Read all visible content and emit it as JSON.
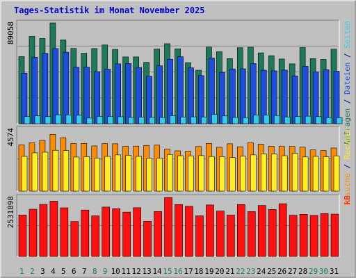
{
  "title": "Tages-Statistik im Monat November 2025",
  "colors": {
    "background": "#c0c0c0",
    "title": "#0000cc",
    "grid": "#888888",
    "hits": "#1c7a5a",
    "files": "#1c4fe0",
    "pages": "#33ccee",
    "visits": "#ff8c00",
    "sites": "#ffee22",
    "kbytes": "#ff1010",
    "weekday_label": "#000080",
    "weekend_label": "#1c7a5a"
  },
  "chart_data": {
    "type": "bar",
    "x": [
      1,
      2,
      3,
      4,
      5,
      6,
      7,
      8,
      9,
      10,
      11,
      12,
      13,
      14,
      15,
      16,
      17,
      18,
      19,
      20,
      21,
      22,
      23,
      24,
      25,
      26,
      27,
      28,
      29,
      30,
      31
    ],
    "weekend_days": [
      1,
      2,
      8,
      9,
      15,
      16,
      22,
      23,
      29,
      30
    ],
    "panels": [
      {
        "axis_max_label": "89058",
        "ymax": 89058,
        "right_labels": [
          {
            "text": "Anfragen",
            "color": "#1c7a5a"
          },
          {
            "text": " / ",
            "color": "#000080"
          },
          {
            "text": "Dateien",
            "color": "#1c4fe0"
          },
          {
            "text": " / ",
            "color": "#000080"
          },
          {
            "text": "Seiten",
            "color": "#33ccee"
          }
        ],
        "series": [
          {
            "name": "Anfragen",
            "color": "#1c7a5a",
            "values": [
              59300,
              77100,
              75300,
              89058,
              74100,
              66500,
              62300,
              66400,
              69600,
              65700,
              59000,
              59000,
              54200,
              66000,
              70700,
              66200,
              54000,
              47300,
              67700,
              63600,
              57600,
              67200,
              67600,
              62600,
              60100,
              57200,
              52900,
              67300,
              57600,
              56800,
              65900
            ]
          },
          {
            "name": "Dateien",
            "color": "#1c4fe0",
            "values": [
              44600,
              58800,
              62200,
              66400,
              63200,
              49900,
              50000,
              46000,
              48200,
              52900,
              53200,
              49700,
              41900,
              51200,
              57000,
              59200,
              49400,
              42500,
              58100,
              45400,
              48400,
              48500,
              53200,
              47300,
              46700,
              47400,
              42300,
              50700,
              45900,
              47800,
              46400
            ]
          },
          {
            "name": "Seiten",
            "color": "#33ccee",
            "values": [
              6300,
              7000,
              6300,
              7900,
              7800,
              7500,
              5000,
              6500,
              6400,
              6200,
              5600,
              5800,
              5600,
              5500,
              7100,
              6000,
              6100,
              6000,
              8300,
              6900,
              5600,
              5400,
              7600,
              7600,
              7300,
              6000,
              6400,
              6700,
              6300,
              5400,
              5400
            ]
          }
        ]
      },
      {
        "axis_max_label": "4574",
        "ymax": 4574,
        "right_labels": [
          {
            "text": "Besuche",
            "color": "#ff8c00"
          },
          {
            "text": " / ",
            "color": "#000080"
          },
          {
            "text": "Rechner",
            "color": "#ffee22"
          }
        ],
        "series": [
          {
            "name": "Besuche",
            "color": "#ff8c00",
            "values": [
              3420,
              3580,
              3750,
              4200,
              3950,
              3530,
              3530,
              3340,
              3510,
              3500,
              3320,
              3330,
              3380,
              3400,
              3100,
              2980,
              2950,
              3300,
              3530,
              3240,
              3500,
              3280,
              3580,
              3470,
              3320,
              3310,
              3310,
              3250,
              3050,
              3000,
              3190
            ]
          },
          {
            "name": "Rechner",
            "color": "#ffee22",
            "values": [
              2570,
              2830,
              2880,
              3020,
              3000,
              2520,
              2550,
              2430,
              2570,
              2680,
              2650,
              2570,
              2420,
              2430,
              2710,
              2620,
              2610,
              2630,
              2560,
              2550,
              2480,
              2580,
              2680,
              2760,
              2750,
              2620,
              2800,
              2530,
              2570,
              2540,
              2610
            ]
          }
        ]
      },
      {
        "axis_max_label": "2531898",
        "ymax": 2531898,
        "right_labels": [
          {
            "text": "kB",
            "color": "#ff1010"
          }
        ],
        "series": [
          {
            "name": "kB",
            "color": "#ff1010",
            "values": [
              1775600,
              2025300,
              2231900,
              2369700,
              2084400,
              1497500,
              1989600,
              1741300,
              2116400,
              2049400,
              1901800,
              2089700,
              1508000,
              1926400,
              2523100,
              2226000,
              2150800,
              1741300,
              2207900,
              1946500,
              1771800,
              2225600,
              1922700,
              2184900,
              2013500,
              2260400,
              1767800,
              1806400,
              1761500,
              1838000,
              1814600
            ]
          }
        ]
      }
    ]
  }
}
